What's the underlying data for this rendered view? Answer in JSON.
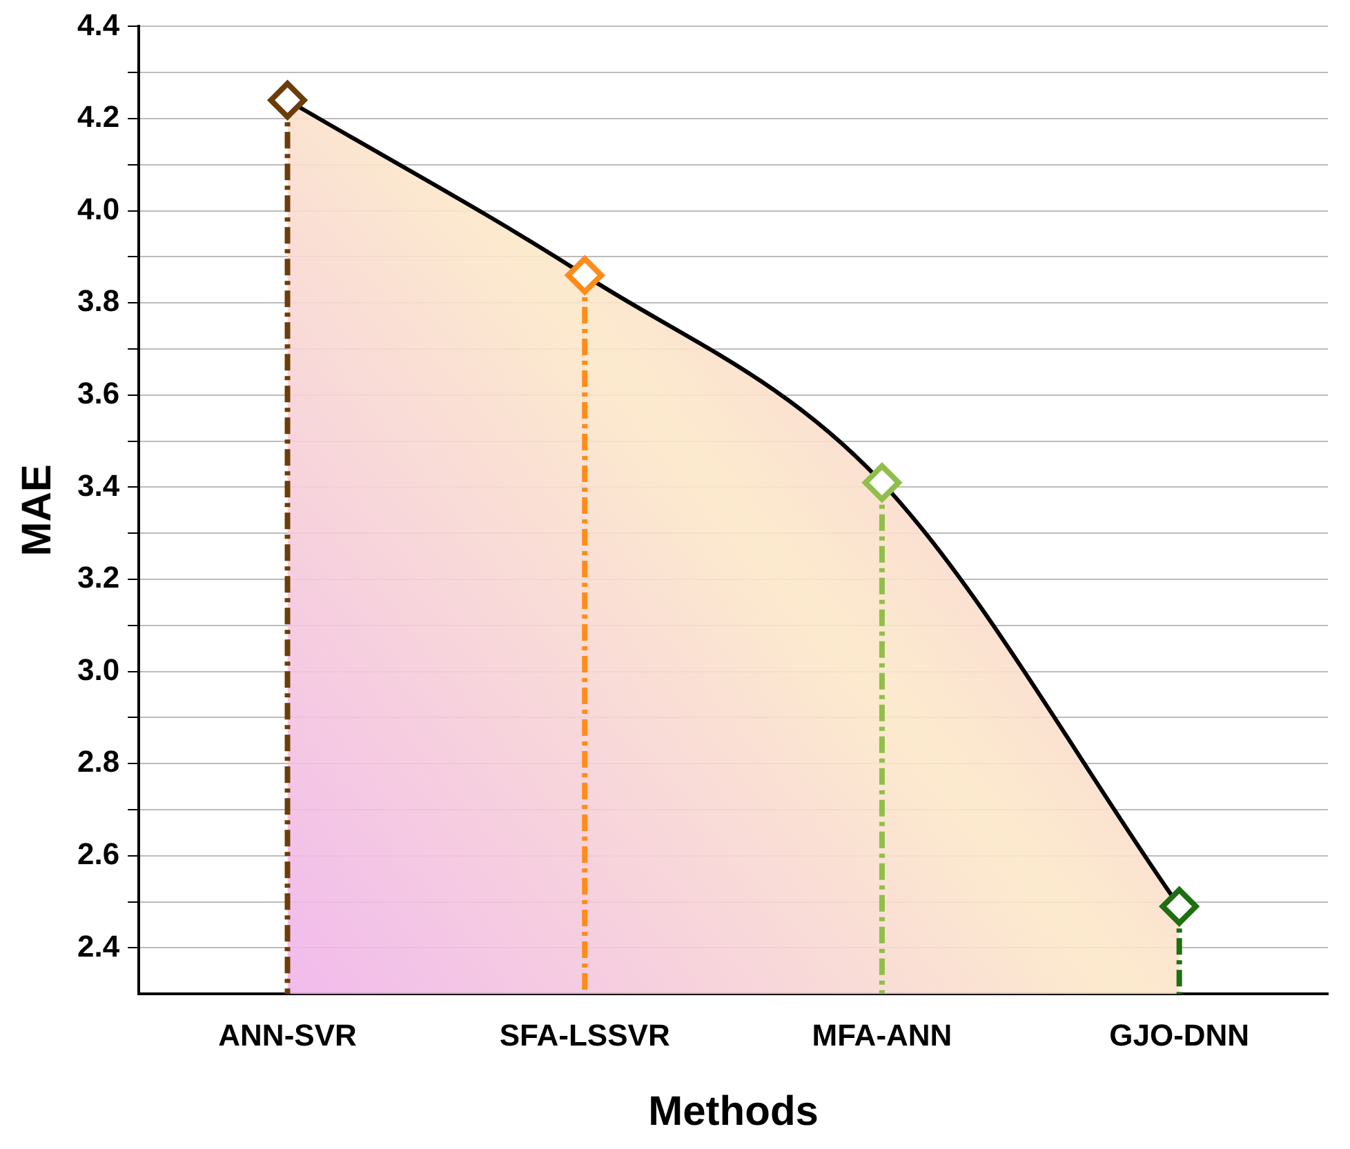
{
  "chart_data": {
    "type": "area",
    "xlabel": "Methods",
    "ylabel": "MAE",
    "categories": [
      "ANN-SVR",
      "SFA-LSSVR",
      "MFA-ANN",
      "GJO-DNN"
    ],
    "series": [
      {
        "color": "#000000",
        "marker": "none",
        "values": [
          4.24,
          3.86,
          3.41,
          2.49
        ]
      },
      {
        "type": "lollipop",
        "line_style": "dashdot",
        "colors": [
          "#6b3d0a",
          "#ff8c1a",
          "#8fbf4a",
          "#1e6e12"
        ],
        "values": [
          4.24,
          3.86,
          3.41,
          2.49
        ]
      }
    ],
    "ylim": [
      2.3,
      4.4
    ],
    "yticks": [
      2.4,
      {
        "value": 2.5,
        "label": null
      },
      2.6,
      {
        "value": 2.7,
        "label": null
      },
      2.8,
      {
        "value": 2.9,
        "label": null
      },
      {
        "value": 3.0,
        "label": "3.0"
      },
      {
        "value": 3.1,
        "label": null
      },
      3.2,
      {
        "value": 3.3,
        "label": null
      },
      3.4,
      {
        "value": 3.5,
        "label": null
      },
      3.6,
      {
        "value": 3.7,
        "label": null
      },
      3.8,
      {
        "value": 3.9,
        "label": null
      },
      {
        "value": 4.0,
        "label": "4.0"
      },
      {
        "value": 4.1,
        "label": null
      },
      4.2,
      {
        "value": 4.3,
        "label": null
      },
      4.4
    ],
    "grid": "y",
    "marker": "diamond",
    "line_style": "solid",
    "legend": false
  }
}
